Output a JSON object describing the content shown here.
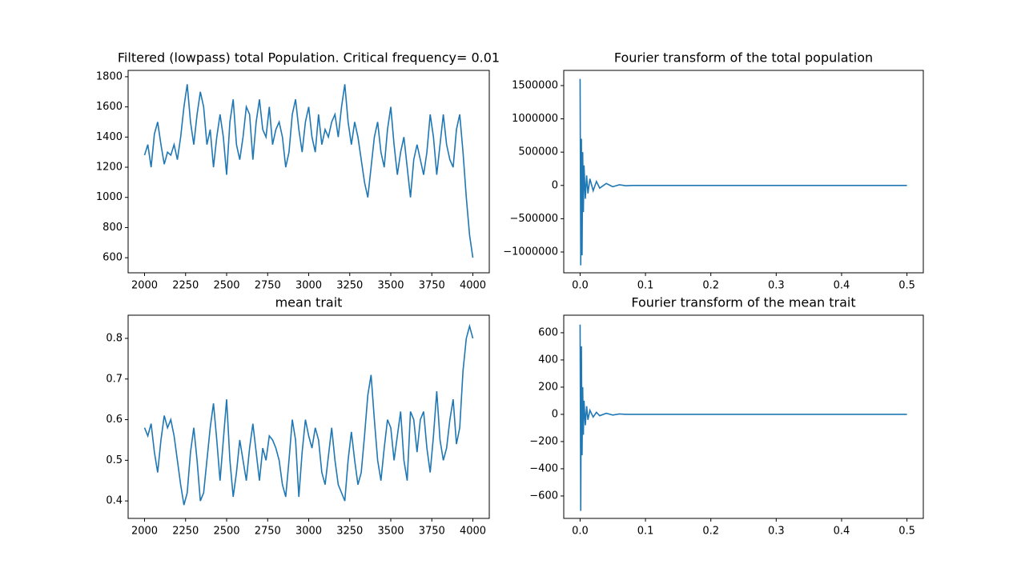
{
  "chart_data": [
    {
      "type": "line",
      "title": "Filtered (lowpass) total Population. Critical frequency= 0.01",
      "color": "#1f77b4",
      "x": [
        2000,
        2020,
        2040,
        2060,
        2080,
        2100,
        2120,
        2140,
        2160,
        2180,
        2200,
        2220,
        2240,
        2260,
        2280,
        2300,
        2320,
        2340,
        2360,
        2380,
        2400,
        2420,
        2440,
        2460,
        2480,
        2500,
        2520,
        2540,
        2560,
        2580,
        2600,
        2620,
        2640,
        2660,
        2680,
        2700,
        2720,
        2740,
        2760,
        2780,
        2800,
        2820,
        2840,
        2860,
        2880,
        2900,
        2920,
        2940,
        2960,
        2980,
        3000,
        3020,
        3040,
        3060,
        3080,
        3100,
        3120,
        3140,
        3160,
        3180,
        3200,
        3220,
        3240,
        3260,
        3280,
        3300,
        3320,
        3340,
        3360,
        3380,
        3400,
        3420,
        3440,
        3460,
        3480,
        3500,
        3520,
        3540,
        3560,
        3580,
        3600,
        3620,
        3640,
        3660,
        3680,
        3700,
        3720,
        3740,
        3760,
        3780,
        3800,
        3820,
        3840,
        3860,
        3880,
        3900,
        3920,
        3940,
        3960,
        3980,
        4000
      ],
      "values": [
        1280,
        1350,
        1200,
        1420,
        1500,
        1350,
        1220,
        1300,
        1280,
        1350,
        1250,
        1400,
        1600,
        1750,
        1500,
        1350,
        1550,
        1700,
        1600,
        1350,
        1450,
        1200,
        1400,
        1550,
        1400,
        1150,
        1500,
        1650,
        1350,
        1250,
        1400,
        1600,
        1550,
        1250,
        1500,
        1650,
        1450,
        1400,
        1600,
        1350,
        1450,
        1500,
        1400,
        1200,
        1300,
        1550,
        1650,
        1450,
        1300,
        1500,
        1600,
        1400,
        1300,
        1550,
        1350,
        1450,
        1400,
        1500,
        1550,
        1400,
        1600,
        1750,
        1500,
        1350,
        1500,
        1400,
        1250,
        1100,
        1000,
        1200,
        1400,
        1500,
        1300,
        1200,
        1450,
        1600,
        1350,
        1150,
        1300,
        1400,
        1200,
        1000,
        1250,
        1350,
        1250,
        1150,
        1300,
        1550,
        1400,
        1150,
        1350,
        1550,
        1350,
        1250,
        1200,
        1450,
        1550,
        1300,
        1000,
        750,
        600
      ],
      "xlim": [
        1900,
        4100
      ],
      "ylim": [
        500,
        1842
      ],
      "xticks": [
        2000,
        2250,
        2500,
        2750,
        3000,
        3250,
        3500,
        3750,
        4000
      ],
      "yticks": [
        600,
        800,
        1000,
        1200,
        1400,
        1600,
        1800
      ]
    },
    {
      "type": "line",
      "title": "Fourier transform of the total population",
      "color": "#1f77b4",
      "x": [
        0,
        0.001,
        0.002,
        0.003,
        0.004,
        0.005,
        0.006,
        0.008,
        0.01,
        0.012,
        0.015,
        0.02,
        0.025,
        0.03,
        0.04,
        0.05,
        0.06,
        0.07,
        0.08,
        0.1,
        0.2,
        0.3,
        0.4,
        0.5
      ],
      "values": [
        1600000,
        -1200000,
        700000,
        -1050000,
        500000,
        -400000,
        300000,
        -200000,
        150000,
        -120000,
        100000,
        -80000,
        60000,
        -40000,
        30000,
        -20000,
        10000,
        -5000,
        0,
        0,
        0,
        0,
        0,
        0
      ],
      "xlim": [
        -0.025,
        0.525
      ],
      "ylim": [
        -1312500,
        1728000
      ],
      "xticks": [
        {
          "value": 0,
          "label": "0.0"
        },
        0.1,
        0.2,
        0.3,
        0.4,
        0.5
      ],
      "yticks": [
        {
          "value": -1000000,
          "label": "−1000000"
        },
        {
          "value": -500000,
          "label": "−500000"
        },
        0,
        500000,
        1000000,
        1500000
      ]
    },
    {
      "type": "line",
      "title": "mean trait",
      "color": "#1f77b4",
      "x": [
        2000,
        2020,
        2040,
        2060,
        2080,
        2100,
        2120,
        2140,
        2160,
        2180,
        2200,
        2220,
        2240,
        2260,
        2280,
        2300,
        2320,
        2340,
        2360,
        2380,
        2400,
        2420,
        2440,
        2460,
        2480,
        2500,
        2520,
        2540,
        2560,
        2580,
        2600,
        2620,
        2640,
        2660,
        2680,
        2700,
        2720,
        2740,
        2760,
        2780,
        2800,
        2820,
        2840,
        2860,
        2880,
        2900,
        2920,
        2940,
        2960,
        2980,
        3000,
        3020,
        3040,
        3060,
        3080,
        3100,
        3120,
        3140,
        3160,
        3180,
        3200,
        3220,
        3240,
        3260,
        3280,
        3300,
        3320,
        3340,
        3360,
        3380,
        3400,
        3420,
        3440,
        3460,
        3480,
        3500,
        3520,
        3540,
        3560,
        3580,
        3600,
        3620,
        3640,
        3660,
        3680,
        3700,
        3720,
        3740,
        3760,
        3780,
        3800,
        3820,
        3840,
        3860,
        3880,
        3900,
        3920,
        3940,
        3960,
        3980,
        4000
      ],
      "values": [
        0.58,
        0.56,
        0.59,
        0.52,
        0.47,
        0.55,
        0.61,
        0.58,
        0.6,
        0.56,
        0.5,
        0.44,
        0.39,
        0.42,
        0.52,
        0.58,
        0.5,
        0.4,
        0.42,
        0.5,
        0.58,
        0.64,
        0.55,
        0.45,
        0.55,
        0.65,
        0.5,
        0.41,
        0.47,
        0.55,
        0.5,
        0.45,
        0.53,
        0.59,
        0.52,
        0.45,
        0.53,
        0.5,
        0.56,
        0.55,
        0.53,
        0.5,
        0.44,
        0.41,
        0.5,
        0.6,
        0.55,
        0.41,
        0.52,
        0.6,
        0.56,
        0.53,
        0.58,
        0.55,
        0.47,
        0.44,
        0.51,
        0.58,
        0.5,
        0.44,
        0.42,
        0.4,
        0.5,
        0.57,
        0.5,
        0.44,
        0.47,
        0.56,
        0.66,
        0.71,
        0.6,
        0.5,
        0.45,
        0.53,
        0.6,
        0.58,
        0.5,
        0.56,
        0.62,
        0.5,
        0.45,
        0.62,
        0.6,
        0.52,
        0.6,
        0.62,
        0.53,
        0.47,
        0.56,
        0.67,
        0.55,
        0.5,
        0.53,
        0.6,
        0.65,
        0.54,
        0.58,
        0.72,
        0.8,
        0.83,
        0.8
      ],
      "xlim": [
        1900,
        4100
      ],
      "ylim": [
        0.357,
        0.857
      ],
      "xticks": [
        2000,
        2250,
        2500,
        2750,
        3000,
        3250,
        3500,
        3750,
        4000
      ],
      "yticks": [
        0.4,
        0.5,
        0.6,
        0.7,
        0.8
      ]
    },
    {
      "type": "line",
      "title": "Fourier transform of the mean trait",
      "color": "#1f77b4",
      "x": [
        0,
        0.001,
        0.002,
        0.003,
        0.004,
        0.005,
        0.006,
        0.008,
        0.01,
        0.012,
        0.015,
        0.02,
        0.025,
        0.03,
        0.04,
        0.05,
        0.06,
        0.07,
        0.08,
        0.1,
        0.2,
        0.3,
        0.4,
        0.5
      ],
      "values": [
        660,
        -710,
        500,
        -300,
        200,
        -150,
        100,
        -80,
        60,
        -40,
        30,
        -20,
        15,
        -10,
        8,
        -5,
        3,
        0,
        0,
        0,
        0,
        0,
        0,
        0
      ],
      "xlim": [
        -0.025,
        0.525
      ],
      "ylim": [
        -765,
        729
      ],
      "xticks": [
        {
          "value": 0,
          "label": "0.0"
        },
        0.1,
        0.2,
        0.3,
        0.4,
        0.5
      ],
      "yticks": [
        {
          "value": -600,
          "label": "−600"
        },
        {
          "value": -400,
          "label": "−400"
        },
        {
          "value": -200,
          "label": "−200"
        },
        0,
        200,
        400,
        600
      ]
    }
  ]
}
